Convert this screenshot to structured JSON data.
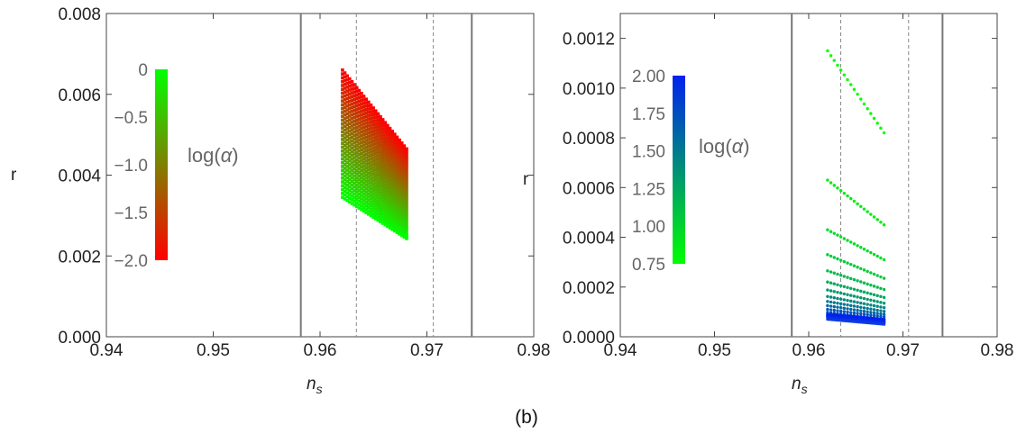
{
  "chart_data": [
    {
      "type": "scatter",
      "id": "left",
      "xlabel": "n",
      "xlabel_sub": "s",
      "ylabel": "r",
      "xlim": [
        0.94,
        0.98
      ],
      "ylim": [
        0.0,
        0.008
      ],
      "xticks": [
        "0.94",
        "0.95",
        "0.96",
        "0.97",
        "0.98"
      ],
      "yticks": [
        "0.000",
        "0.002",
        "0.004",
        "0.006",
        "0.008"
      ],
      "solid_vlines": [
        0.9582,
        0.9742
      ],
      "dashed_vlines": [
        0.9634,
        0.9706
      ],
      "grid": false,
      "colorbar": {
        "title": "log(",
        "title_symbol": "α",
        "title_end": ")",
        "ticks": [
          "0",
          "−0.5",
          "−1.0",
          "−1.5",
          "−2.0"
        ],
        "range": [
          -2.0,
          0.0
        ],
        "color_low": "#ff0000",
        "color_high": "#00ff00"
      },
      "band": {
        "ns_range": [
          0.9621,
          0.9681
        ],
        "r_top_start": 0.0066,
        "r_top_end": 0.00465,
        "r_bottom_start": 0.00345,
        "r_bottom_end": 0.00243,
        "log_alpha_range": [
          0.0,
          -2.0
        ]
      }
    },
    {
      "type": "scatter",
      "id": "right",
      "xlabel": "n",
      "xlabel_sub": "s",
      "ylabel": "r",
      "xlim": [
        0.94,
        0.98
      ],
      "ylim": [
        0.0,
        0.0013
      ],
      "xticks": [
        "0.94",
        "0.95",
        "0.96",
        "0.97",
        "0.98"
      ],
      "yticks": [
        "0.0000",
        "0.0002",
        "0.0004",
        "0.0006",
        "0.0008",
        "0.0010",
        "0.0012"
      ],
      "solid_vlines": [
        0.9582,
        0.9742
      ],
      "dashed_vlines": [
        0.9634,
        0.9706
      ],
      "grid": false,
      "colorbar": {
        "title": "log(",
        "title_symbol": "α",
        "title_end": ")",
        "ticks": [
          "2.00",
          "1.75",
          "1.50",
          "1.25",
          "1.00",
          "0.75"
        ],
        "range": [
          0.7,
          2.0
        ],
        "color_low": "#00ff00",
        "color_high": "#0022ee"
      },
      "lines": [
        {
          "log_alpha": 0.7,
          "r_start": 0.00115,
          "r_end": 0.00082
        },
        {
          "log_alpha": 0.8,
          "r_start": 0.00063,
          "r_end": 0.00045
        },
        {
          "log_alpha": 0.9,
          "r_start": 0.00043,
          "r_end": 0.00031
        },
        {
          "log_alpha": 1.0,
          "r_start": 0.00033,
          "r_end": 0.000235
        },
        {
          "log_alpha": 1.1,
          "r_start": 0.000265,
          "r_end": 0.00019
        },
        {
          "log_alpha": 1.2,
          "r_start": 0.00022,
          "r_end": 0.000158
        },
        {
          "log_alpha": 1.3,
          "r_start": 0.000188,
          "r_end": 0.000135
        },
        {
          "log_alpha": 1.4,
          "r_start": 0.000162,
          "r_end": 0.000117
        },
        {
          "log_alpha": 1.5,
          "r_start": 0.000142,
          "r_end": 0.000102
        },
        {
          "log_alpha": 1.6,
          "r_start": 0.000125,
          "r_end": 9e-05
        },
        {
          "log_alpha": 1.7,
          "r_start": 0.00011,
          "r_end": 8e-05
        },
        {
          "log_alpha": 1.8,
          "r_start": 9.8e-05,
          "r_end": 7e-05
        },
        {
          "log_alpha": 1.9,
          "r_start": 8.8e-05,
          "r_end": 6.2e-05
        },
        {
          "log_alpha": 2.0,
          "r_start": 8e-05,
          "r_end": 5.5e-05
        }
      ],
      "ns_range": [
        0.962,
        0.968
      ]
    }
  ],
  "panel_label": "(b)"
}
